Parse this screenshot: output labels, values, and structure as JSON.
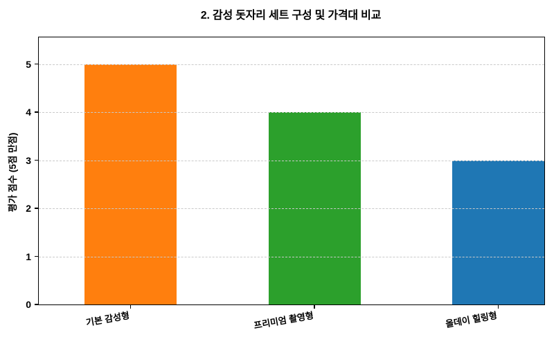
{
  "chart_data": {
    "type": "bar",
    "title": "2. 감성 돗자리 세트 구성 및 가격대 비교",
    "categories": [
      "기본 감성형",
      "프리미엄 촬영형",
      "올데이 힐링형"
    ],
    "values": [
      5,
      4,
      3
    ],
    "bar_colors": [
      "#ff7f0e",
      "#2ca02c",
      "#1f77b4"
    ],
    "xlabel": "",
    "ylabel": "평가 점수 (5점 만점)",
    "yticks": [
      0,
      1,
      2,
      3,
      4,
      5
    ],
    "ylim": [
      0,
      5.56
    ],
    "grid": "horizontal-dashed",
    "grid_color": "#c9c9c9",
    "legend": "none",
    "x_tick_rotation_deg": -10,
    "background_color": "#ffffff",
    "spine_color": "#000000"
  }
}
